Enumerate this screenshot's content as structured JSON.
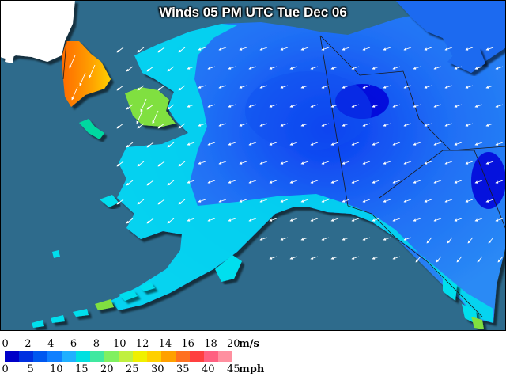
{
  "title": "Winds 05 PM UTC Tue Dec 06",
  "legend": {
    "ms_ticks": [
      "0",
      "2",
      "4",
      "6",
      "8",
      "10",
      "12",
      "14",
      "16",
      "18",
      "20"
    ],
    "ms_unit": "m/s",
    "mph_ticks": [
      "0",
      "5",
      "10",
      "15",
      "20",
      "25",
      "30",
      "35",
      "40",
      "45"
    ],
    "mph_unit": "mph",
    "colors": [
      "#0000c8",
      "#0030e0",
      "#0058f0",
      "#1080ff",
      "#20b0ff",
      "#00e0e0",
      "#40e8a0",
      "#80f060",
      "#c0f040",
      "#f0f000",
      "#ffd000",
      "#ffa000",
      "#ff7020",
      "#ff4040",
      "#ff6080",
      "#ff90a0"
    ]
  },
  "colors": {
    "ocean": "#2e6b8c",
    "land_other": "#ffffff",
    "wind_low": "#0000e0",
    "wind_mid": "#1e7cf0",
    "wind_coastal": "#00e4ef",
    "wind_high": "#ff8c00"
  },
  "icons": [
    "wind-arrow-icon"
  ]
}
